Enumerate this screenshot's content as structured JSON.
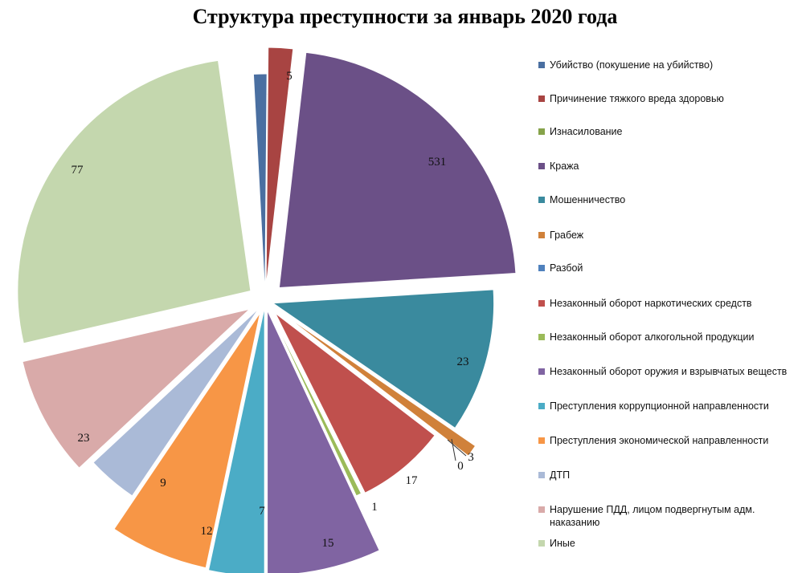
{
  "chart_data": {
    "type": "pie",
    "title": "Структура преступности за январь 2020 года",
    "series": [
      {
        "name": "Убийство (покушение на убийство)",
        "value": 2,
        "color": "#4a6fa1"
      },
      {
        "name": "Причинение тяжкого вреда здоровью",
        "value": 5,
        "color": "#a84442"
      },
      {
        "name": "Изнасилование",
        "value": 0,
        "color": "#86a34a"
      },
      {
        "name": "Кража",
        "value": 531,
        "color": "#6b5087"
      },
      {
        "name": "Мошенничество",
        "value": 23,
        "color": "#3a8a9e"
      },
      {
        "name": "Грабеж",
        "value": 3,
        "color": "#d0813a"
      },
      {
        "name": "Разбой",
        "value": 0,
        "color": "#4f81bd"
      },
      {
        "name": "Незаконный оборот наркотических средств",
        "value": 17,
        "color": "#c0504d"
      },
      {
        "name": "Незаконный оборот алкогольной продукции",
        "value": 1,
        "color": "#9bbb59"
      },
      {
        "name": "Незаконный оборот оружия и взрывчатых веществ",
        "value": 15,
        "color": "#8064a2"
      },
      {
        "name": "Преступления коррупционной направленности",
        "value": 7,
        "color": "#4bacc6"
      },
      {
        "name": "Преступления экономической направленности",
        "value": 12,
        "color": "#f79646"
      },
      {
        "name": "ДТП",
        "value": 9,
        "color": "#aabad7"
      },
      {
        "name": "Нарушение ПДД, лицом подвергнутым адм. наказанию",
        "value": 23,
        "color": "#d9aaa9"
      },
      {
        "name": "Иные",
        "value": 77,
        "color": "#c4d7ae"
      }
    ],
    "legend": "right"
  }
}
